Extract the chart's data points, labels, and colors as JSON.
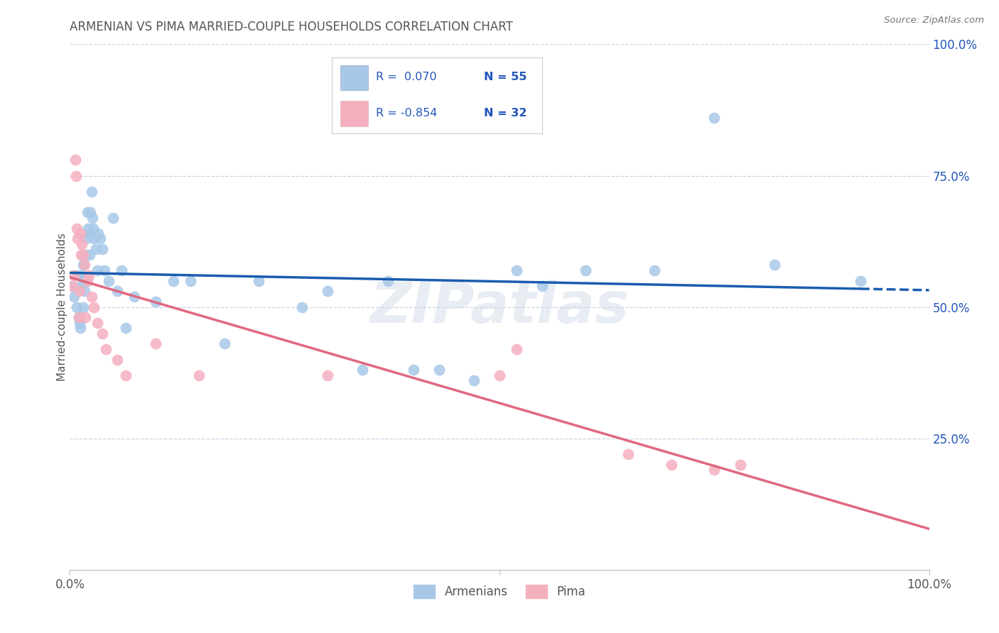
{
  "title": "ARMENIAN VS PIMA MARRIED-COUPLE HOUSEHOLDS CORRELATION CHART",
  "source": "Source: ZipAtlas.com",
  "ylabel": "Married-couple Households",
  "xlim": [
    0,
    1.0
  ],
  "ylim": [
    0,
    1.0
  ],
  "ytick_labels_right": [
    "100.0%",
    "75.0%",
    "50.0%",
    "25.0%"
  ],
  "ytick_positions_right": [
    1.0,
    0.75,
    0.5,
    0.25
  ],
  "watermark": "ZIPatlas",
  "legend_r1": "R =  0.070",
  "legend_n1": "N = 55",
  "legend_r2": "R = -0.854",
  "legend_n2": "N = 32",
  "armenian_color": "#a8c8e8",
  "pima_color": "#f5b0c0",
  "line_armenian_color": "#1a5cb0",
  "line_pima_color": "#e06880",
  "legend_text_color": "#2255bb",
  "title_color": "#555555",
  "grid_color": "#c8d4e4",
  "background_color": "#ffffff",
  "armenian_x": [
    0.003,
    0.005,
    0.008,
    0.009,
    0.01,
    0.011,
    0.012,
    0.013,
    0.014,
    0.015,
    0.015,
    0.016,
    0.017,
    0.018,
    0.019,
    0.02,
    0.021,
    0.022,
    0.023,
    0.024,
    0.025,
    0.026,
    0.027,
    0.028,
    0.03,
    0.032,
    0.033,
    0.035,
    0.038,
    0.04,
    0.045,
    0.05,
    0.055,
    0.06,
    0.065,
    0.075,
    0.1,
    0.12,
    0.14,
    0.18,
    0.22,
    0.27,
    0.3,
    0.34,
    0.37,
    0.4,
    0.43,
    0.47,
    0.52,
    0.55,
    0.6,
    0.68,
    0.75,
    0.82,
    0.92
  ],
  "armenian_y": [
    0.54,
    0.52,
    0.5,
    0.56,
    0.48,
    0.47,
    0.46,
    0.54,
    0.56,
    0.5,
    0.58,
    0.55,
    0.53,
    0.6,
    0.63,
    0.68,
    0.65,
    0.64,
    0.6,
    0.68,
    0.72,
    0.67,
    0.65,
    0.63,
    0.61,
    0.57,
    0.64,
    0.63,
    0.61,
    0.57,
    0.55,
    0.67,
    0.53,
    0.57,
    0.46,
    0.52,
    0.51,
    0.55,
    0.55,
    0.43,
    0.55,
    0.5,
    0.53,
    0.38,
    0.55,
    0.38,
    0.38,
    0.36,
    0.57,
    0.54,
    0.57,
    0.57,
    0.86,
    0.58,
    0.55
  ],
  "pima_x": [
    0.003,
    0.005,
    0.006,
    0.007,
    0.008,
    0.009,
    0.01,
    0.011,
    0.012,
    0.013,
    0.014,
    0.015,
    0.017,
    0.018,
    0.02,
    0.022,
    0.025,
    0.028,
    0.032,
    0.038,
    0.042,
    0.055,
    0.065,
    0.1,
    0.15,
    0.3,
    0.5,
    0.52,
    0.65,
    0.7,
    0.75,
    0.78
  ],
  "pima_y": [
    0.54,
    0.56,
    0.78,
    0.75,
    0.65,
    0.63,
    0.48,
    0.53,
    0.64,
    0.6,
    0.62,
    0.6,
    0.58,
    0.48,
    0.55,
    0.56,
    0.52,
    0.5,
    0.47,
    0.45,
    0.42,
    0.4,
    0.37,
    0.43,
    0.37,
    0.37,
    0.37,
    0.42,
    0.22,
    0.2,
    0.19,
    0.2
  ]
}
